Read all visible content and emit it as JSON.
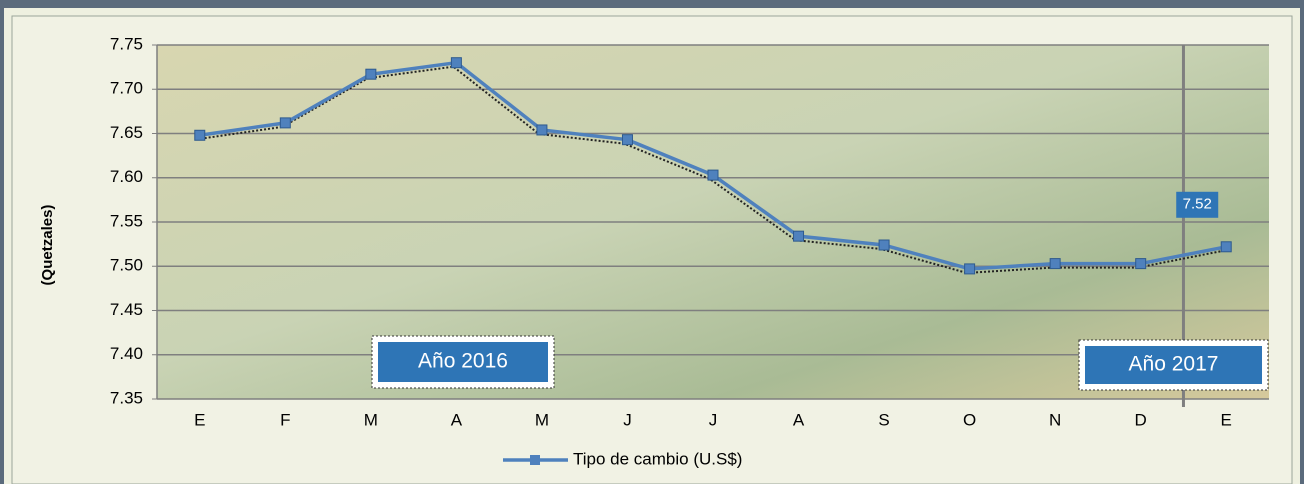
{
  "chart_data": {
    "type": "line",
    "y_label": "(Quetzales)",
    "categories": [
      "E",
      "F",
      "M",
      "A",
      "M",
      "J",
      "J",
      "A",
      "S",
      "O",
      "N",
      "D",
      "E"
    ],
    "series": [
      {
        "name": "Tipo de cambio (U.S$)",
        "color": "#4f81bd",
        "values": [
          7.648,
          7.662,
          7.717,
          7.73,
          7.654,
          7.643,
          7.603,
          7.534,
          7.524,
          7.497,
          7.503,
          7.503,
          7.522
        ],
        "value_labels": [
          null,
          null,
          null,
          null,
          null,
          null,
          null,
          null,
          null,
          null,
          null,
          null,
          "7.52"
        ]
      }
    ],
    "ylim": [
      7.35,
      7.75
    ],
    "yticks": [
      7.35,
      {
        "value": 7.4,
        "label": "7.40"
      },
      7.45,
      {
        "value": 7.5,
        "label": "7.50"
      },
      7.55,
      {
        "value": 7.6,
        "label": "7.60"
      },
      7.65,
      {
        "value": 7.7,
        "label": "7.70"
      },
      7.75
    ],
    "grid": true,
    "legend": "bottom",
    "annotations": [
      "Año 2016",
      "Año 2017"
    ]
  }
}
